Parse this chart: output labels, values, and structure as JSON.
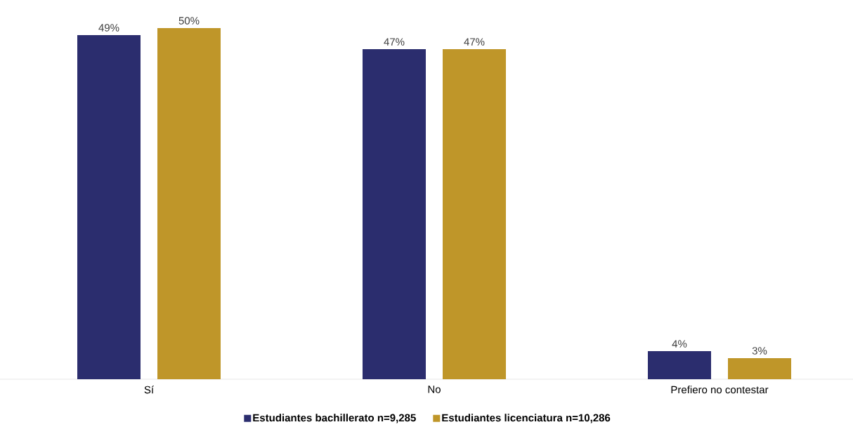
{
  "chart_data": {
    "type": "bar",
    "categories": [
      "Sí",
      "No",
      "Prefiero no contestar"
    ],
    "series": [
      {
        "name": "Estudiantes bachillerato n=9,285",
        "color": "#2b2d6e",
        "values": [
          49,
          47,
          4
        ],
        "value_labels": [
          "49%",
          "47%",
          "4%"
        ]
      },
      {
        "name": "Estudiantes licenciatura n=10,286",
        "color": "#bf9629",
        "values": [
          50,
          47,
          3
        ],
        "value_labels": [
          "50%",
          "47%",
          "3%"
        ]
      }
    ],
    "legend": "bottom"
  }
}
